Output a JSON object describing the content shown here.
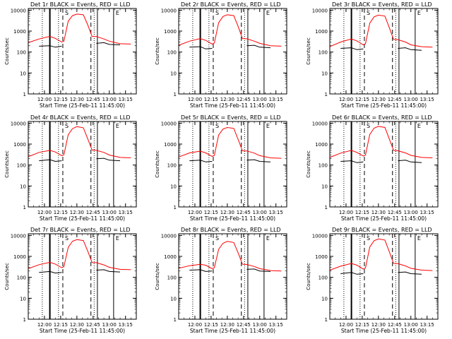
{
  "figure": {
    "xlabel": "Start Time (25-Feb-11 11:45:00)",
    "ylabel": "Counts/sec",
    "x_tick_labels": [
      "12:00",
      "12:15",
      "12:30",
      "12:45",
      "13:00",
      "13:15"
    ],
    "y_tick_labels": [
      "1",
      "10",
      "100",
      "1000",
      "10000"
    ],
    "colors": {
      "events": "#000000",
      "lld": "#ff0000",
      "axes": "#000000",
      "background": "#ffffff"
    },
    "x_axis_type": "time",
    "y_axis_type": "log"
  },
  "chart_data": [
    {
      "type": "line",
      "title": "Det 1r  BLACK = Events, RED = LLD",
      "xlabel": "Start Time (25-Feb-11 11:45:00)",
      "ylabel": "Counts/sec",
      "xlim": [
        "11:45",
        "13:25"
      ],
      "ylim": [
        1,
        12000
      ],
      "yscale": "log",
      "x": [
        "11:45",
        "11:55",
        "12:05",
        "12:10",
        "12:16",
        "12:18",
        "12:22",
        "12:26",
        "12:30",
        "12:36",
        "12:40",
        "12:44",
        "12:48",
        "12:55",
        "13:00",
        "13:10",
        "13:20"
      ],
      "series": [
        {
          "name": "Events",
          "color": "#000000",
          "values": [
            null,
            190,
            200,
            170,
            190,
            null,
            null,
            null,
            null,
            null,
            null,
            null,
            260,
            280,
            230,
            220,
            null
          ]
        },
        {
          "name": "LLD",
          "color": "#ff0000",
          "values": [
            280,
            420,
            560,
            450,
            300,
            330,
            3000,
            5500,
            6500,
            6000,
            2000,
            560,
            550,
            420,
            330,
            250,
            240
          ]
        }
      ],
      "markers": {
        "dotted": [
          "11:58",
          "12:13",
          "12:46"
        ],
        "solid": [
          "12:05",
          "12:49",
          "13:04"
        ],
        "dashed": [
          "12:17",
          "12:43"
        ]
      },
      "annotations": [
        "S",
        "E"
      ]
    },
    {
      "type": "line",
      "title": "Det 2r  BLACK = Events, RED = LLD",
      "xlabel": "Start Time (25-Feb-11 11:45:00)",
      "ylabel": "Counts/sec",
      "xlim": [
        "11:45",
        "13:25"
      ],
      "ylim": [
        1,
        12000
      ],
      "yscale": "log",
      "x": [
        "11:45",
        "11:55",
        "12:05",
        "12:10",
        "12:16",
        "12:18",
        "12:22",
        "12:26",
        "12:30",
        "12:36",
        "12:40",
        "12:44",
        "12:48",
        "12:55",
        "13:00",
        "13:10",
        "13:20"
      ],
      "series": [
        {
          "name": "Events",
          "color": "#000000",
          "values": [
            null,
            170,
            180,
            140,
            150,
            null,
            null,
            null,
            null,
            null,
            null,
            null,
            200,
            210,
            170,
            160,
            null
          ]
        },
        {
          "name": "LLD",
          "color": "#ff0000",
          "values": [
            210,
            330,
            440,
            360,
            240,
            270,
            2500,
            5000,
            6000,
            5500,
            1700,
            440,
            430,
            330,
            260,
            200,
            190
          ]
        }
      ],
      "markers": {
        "dotted": [
          "11:58",
          "12:13",
          "12:46"
        ],
        "solid": [
          "12:05",
          "12:49",
          "13:04"
        ],
        "dashed": [
          "12:17",
          "12:43"
        ]
      },
      "annotations": [
        "S",
        "E"
      ]
    },
    {
      "type": "line",
      "title": "Det 3r  BLACK = Events, RED = LLD",
      "xlabel": "Start Time (25-Feb-11 11:45:00)",
      "ylabel": "Counts/sec",
      "xlim": [
        "11:45",
        "13:25"
      ],
      "ylim": [
        1,
        12000
      ],
      "yscale": "log",
      "x": [
        "11:45",
        "11:55",
        "12:05",
        "12:10",
        "12:16",
        "12:18",
        "12:22",
        "12:26",
        "12:30",
        "12:36",
        "12:40",
        "12:44",
        "12:48",
        "12:55",
        "13:00",
        "13:10",
        "13:20"
      ],
      "series": [
        {
          "name": "Events",
          "color": "#000000",
          "values": [
            null,
            150,
            160,
            130,
            140,
            null,
            null,
            null,
            null,
            null,
            null,
            null,
            150,
            160,
            130,
            120,
            null
          ]
        },
        {
          "name": "LLD",
          "color": "#ff0000",
          "values": [
            180,
            300,
            420,
            340,
            220,
            250,
            2400,
            4800,
            5800,
            5200,
            1500,
            400,
            390,
            300,
            220,
            180,
            170
          ]
        }
      ],
      "markers": {
        "dotted": [
          "11:58",
          "12:13",
          "12:46"
        ],
        "solid": [
          "12:05",
          "12:49",
          "13:04"
        ],
        "dashed": [
          "12:17",
          "12:43"
        ]
      },
      "annotations": [
        "S",
        "E"
      ]
    },
    {
      "type": "line",
      "title": "Det 4r  BLACK = Events, RED = LLD",
      "xlabel": "Start Time (25-Feb-11 11:45:00)",
      "ylabel": "Counts/sec",
      "xlim": [
        "11:45",
        "13:25"
      ],
      "ylim": [
        1,
        12000
      ],
      "yscale": "log",
      "x": [
        "11:45",
        "11:55",
        "12:05",
        "12:10",
        "12:16",
        "12:18",
        "12:22",
        "12:26",
        "12:30",
        "12:36",
        "12:40",
        "12:44",
        "12:48",
        "12:55",
        "13:00",
        "13:10",
        "13:20"
      ],
      "series": [
        {
          "name": "Events",
          "color": "#000000",
          "values": [
            null,
            160,
            180,
            150,
            160,
            null,
            null,
            null,
            null,
            null,
            null,
            null,
            200,
            210,
            170,
            160,
            null
          ]
        },
        {
          "name": "LLD",
          "color": "#ff0000",
          "values": [
            250,
            400,
            500,
            420,
            280,
            310,
            2800,
            5500,
            6800,
            6000,
            1800,
            520,
            500,
            400,
            300,
            230,
            220
          ]
        }
      ],
      "markers": {
        "dotted": [
          "11:58",
          "12:13",
          "12:46"
        ],
        "solid": [
          "12:05",
          "12:49",
          "13:04"
        ],
        "dashed": [
          "12:17",
          "12:43"
        ]
      },
      "annotations": [
        "S",
        "E"
      ]
    },
    {
      "type": "line",
      "title": "Det 5r  BLACK = Events, RED = LLD",
      "xlabel": "Start Time (25-Feb-11 11:45:00)",
      "ylabel": "Counts/sec",
      "xlim": [
        "11:45",
        "13:25"
      ],
      "ylim": [
        1,
        12000
      ],
      "yscale": "log",
      "x": [
        "11:45",
        "11:55",
        "12:05",
        "12:10",
        "12:16",
        "12:18",
        "12:22",
        "12:26",
        "12:30",
        "12:36",
        "12:40",
        "12:44",
        "12:48",
        "12:55",
        "13:00",
        "13:10",
        "13:20"
      ],
      "series": [
        {
          "name": "Events",
          "color": "#000000",
          "values": [
            null,
            160,
            170,
            140,
            150,
            null,
            null,
            null,
            null,
            null,
            null,
            null,
            170,
            180,
            150,
            140,
            null
          ]
        },
        {
          "name": "LLD",
          "color": "#ff0000",
          "values": [
            240,
            380,
            460,
            380,
            260,
            290,
            2700,
            5200,
            6200,
            5600,
            1700,
            480,
            470,
            370,
            280,
            220,
            210
          ]
        }
      ],
      "markers": {
        "dotted": [
          "11:58",
          "12:13",
          "12:46"
        ],
        "solid": [
          "12:05",
          "12:49",
          "13:04"
        ],
        "dashed": [
          "12:17",
          "12:43"
        ]
      },
      "annotations": [
        "S",
        "E"
      ]
    },
    {
      "type": "line",
      "title": "Det 6r  BLACK = Events, RED = LLD",
      "xlabel": "Start Time (25-Feb-11 11:45:00)",
      "ylabel": "Counts/sec",
      "xlim": [
        "11:45",
        "13:25"
      ],
      "ylim": [
        1,
        12000
      ],
      "yscale": "log",
      "x": [
        "11:45",
        "11:55",
        "12:05",
        "12:10",
        "12:16",
        "12:18",
        "12:22",
        "12:26",
        "12:30",
        "12:36",
        "12:40",
        "12:44",
        "12:48",
        "12:55",
        "13:00",
        "13:10",
        "13:20"
      ],
      "series": [
        {
          "name": "Events",
          "color": "#000000",
          "values": [
            null,
            150,
            160,
            130,
            140,
            null,
            null,
            null,
            null,
            null,
            null,
            null,
            160,
            170,
            140,
            130,
            null
          ]
        },
        {
          "name": "LLD",
          "color": "#ff0000",
          "values": [
            230,
            370,
            500,
            400,
            270,
            300,
            2900,
            5800,
            7000,
            6200,
            1800,
            500,
            480,
            380,
            290,
            230,
            220
          ]
        }
      ],
      "markers": {
        "dotted": [
          "11:58",
          "12:13",
          "12:46"
        ],
        "solid": [
          "12:05",
          "12:49",
          "13:04"
        ],
        "dashed": [
          "12:17",
          "12:43"
        ]
      },
      "annotations": [
        "S",
        "E"
      ]
    },
    {
      "type": "line",
      "title": "Det 7r  BLACK = Events, RED = LLD",
      "xlabel": "Start Time (25-Feb-11 11:45:00)",
      "ylabel": "Counts/sec",
      "xlim": [
        "11:45",
        "13:25"
      ],
      "ylim": [
        1,
        12000
      ],
      "yscale": "log",
      "x": [
        "11:45",
        "11:55",
        "12:05",
        "12:10",
        "12:16",
        "12:18",
        "12:22",
        "12:26",
        "12:30",
        "12:36",
        "12:40",
        "12:44",
        "12:48",
        "12:55",
        "13:00",
        "13:10",
        "13:20"
      ],
      "series": [
        {
          "name": "Events",
          "color": "#000000",
          "values": [
            null,
            170,
            190,
            160,
            170,
            null,
            null,
            null,
            null,
            null,
            null,
            null,
            220,
            230,
            190,
            180,
            null
          ]
        },
        {
          "name": "LLD",
          "color": "#ff0000",
          "values": [
            260,
            400,
            520,
            430,
            290,
            320,
            2700,
            5300,
            6300,
            5700,
            1800,
            510,
            500,
            390,
            300,
            240,
            230
          ]
        }
      ],
      "markers": {
        "dotted": [
          "11:58",
          "12:13",
          "12:46"
        ],
        "solid": [
          "12:05",
          "12:49",
          "13:04"
        ],
        "dashed": [
          "12:17",
          "12:43"
        ]
      },
      "annotations": [
        "S",
        "E"
      ]
    },
    {
      "type": "line",
      "title": "Det 8r  BLACK = Events, RED = LLD",
      "xlabel": "Start Time (25-Feb-11 11:45:00)",
      "ylabel": "Counts/sec",
      "xlim": [
        "11:45",
        "13:25"
      ],
      "ylim": [
        1,
        12000
      ],
      "yscale": "log",
      "x": [
        "11:45",
        "11:55",
        "12:05",
        "12:10",
        "12:16",
        "12:18",
        "12:22",
        "12:26",
        "12:30",
        "12:36",
        "12:40",
        "12:44",
        "12:48",
        "12:55",
        "13:00",
        "13:10",
        "13:20"
      ],
      "series": [
        {
          "name": "Events",
          "color": "#000000",
          "values": [
            null,
            220,
            230,
            190,
            200,
            null,
            null,
            null,
            null,
            null,
            null,
            null,
            240,
            250,
            200,
            190,
            null
          ]
        },
        {
          "name": "LLD",
          "color": "#ff0000",
          "values": [
            270,
            360,
            420,
            380,
            260,
            290,
            2200,
            4200,
            5200,
            4600,
            1500,
            420,
            410,
            330,
            260,
            210,
            200
          ]
        }
      ],
      "markers": {
        "dotted": [
          "11:58",
          "12:13",
          "12:46"
        ],
        "solid": [
          "12:05",
          "12:49",
          "13:04"
        ],
        "dashed": [
          "12:17",
          "12:43"
        ]
      },
      "annotations": [
        "S",
        "E"
      ]
    },
    {
      "type": "line",
      "title": "Det 9r  BLACK = Events, RED = LLD",
      "xlabel": "Start Time (25-Feb-11 11:45:00)",
      "ylabel": "Counts/sec",
      "xlim": [
        "11:45",
        "13:25"
      ],
      "ylim": [
        1,
        12000
      ],
      "yscale": "log",
      "x": [
        "11:45",
        "11:55",
        "12:05",
        "12:10",
        "12:16",
        "12:18",
        "12:22",
        "12:26",
        "12:30",
        "12:36",
        "12:40",
        "12:44",
        "12:48",
        "12:55",
        "13:00",
        "13:10",
        "13:20"
      ],
      "series": [
        {
          "name": "Events",
          "color": "#000000",
          "values": [
            null,
            150,
            170,
            140,
            150,
            null,
            null,
            null,
            null,
            null,
            null,
            null,
            170,
            180,
            150,
            140,
            null
          ]
        },
        {
          "name": "LLD",
          "color": "#ff0000",
          "values": [
            220,
            340,
            460,
            380,
            250,
            280,
            2800,
            5600,
            6800,
            6000,
            1700,
            460,
            450,
            350,
            270,
            220,
            210
          ]
        }
      ],
      "markers": {
        "dotted": [
          "11:58",
          "12:13",
          "12:46"
        ],
        "solid": [
          "12:05",
          "12:49",
          "13:04"
        ],
        "dashed": [
          "12:17",
          "12:43"
        ]
      },
      "annotations": [
        "S",
        "E"
      ]
    }
  ]
}
